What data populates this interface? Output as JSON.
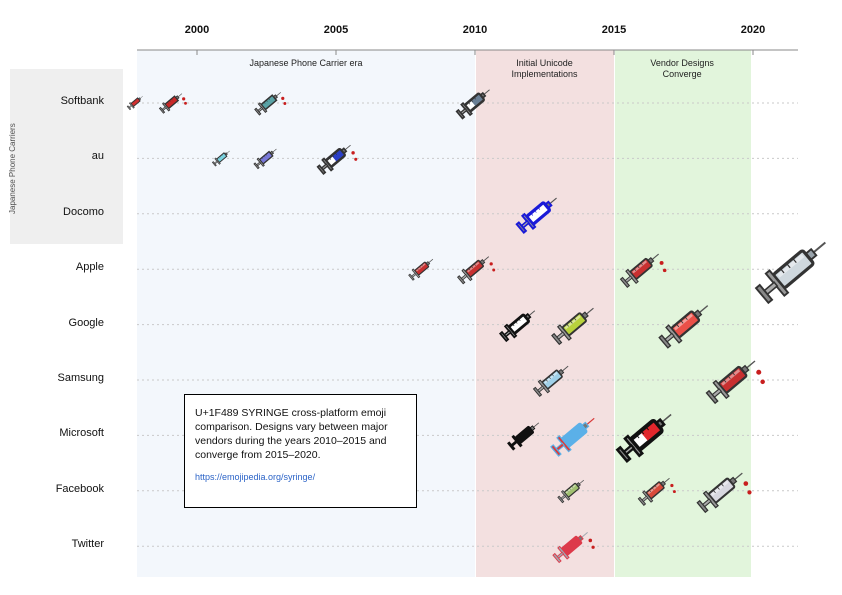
{
  "years": [
    {
      "label": "2000",
      "value": 2000
    },
    {
      "label": "2005",
      "value": 2005
    },
    {
      "label": "2010",
      "value": 2010
    },
    {
      "label": "2015",
      "value": 2015
    },
    {
      "label": "2020",
      "value": 2020
    }
  ],
  "eras": [
    {
      "label": "Japanese Phone Carrier era",
      "start": 1997,
      "end": 2010,
      "color": "#f3f7fc"
    },
    {
      "label": "Initial Unicode Implementations",
      "start": 2010,
      "end": 2015,
      "color": "#f3e0e0"
    },
    {
      "label": "Vendor Designs Converge",
      "start": 2015,
      "end": 2019.9,
      "color": "#e2f5dc"
    }
  ],
  "group_label": "Japanese Phone Carriers",
  "rows": [
    "Softbank",
    "au",
    "Docomo",
    "Apple",
    "Google",
    "Samsung",
    "Microsoft",
    "Facebook",
    "Twitter"
  ],
  "info_box": {
    "text": "U+1F489 SYRINGE cross-platform emoji comparison. Designs vary between major vendors during the years 2010–2015 and converge from 2015–2020.",
    "link": "https://emojipedia.org/syringe/"
  },
  "emojis": [
    {
      "row": "Softbank",
      "year": 1997.8,
      "style": "pixel",
      "barrel": "#d23030",
      "size": 18
    },
    {
      "row": "Softbank",
      "year": 1999.1,
      "style": "pixel",
      "barrel": "#c82828",
      "size": 26,
      "drops": true
    },
    {
      "row": "Softbank",
      "year": 2002.6,
      "style": "pixel",
      "barrel": "#5aa3a6",
      "size": 30,
      "drops": true
    },
    {
      "row": "Softbank",
      "year": 2010,
      "style": "outline",
      "barrel": "#6a7f95",
      "size": 38
    },
    {
      "row": "au",
      "year": 2000.9,
      "style": "pixel",
      "barrel": "#7ad3e0",
      "size": 20
    },
    {
      "row": "au",
      "year": 2002.5,
      "style": "pixel",
      "barrel": "#7878d8",
      "size": 26
    },
    {
      "row": "au",
      "year": 2005,
      "style": "outline",
      "barrel": "#2a3ec8",
      "size": 38,
      "drops": true
    },
    {
      "row": "Docomo",
      "year": 2012.3,
      "style": "outline",
      "barrel": "#ffffff",
      "stroke": "#1a1ad8",
      "size": 46
    },
    {
      "row": "Apple",
      "year": 2008.1,
      "style": "realistic",
      "barrel": "#c83030",
      "size": 28
    },
    {
      "row": "Apple",
      "year": 2010,
      "style": "realistic",
      "barrel": "#c83030",
      "size": 36,
      "drops": true
    },
    {
      "row": "Apple",
      "year": 2016,
      "style": "realistic",
      "barrel": "#c83030",
      "size": 44,
      "drops": true
    },
    {
      "row": "Apple",
      "year": 2021.5,
      "style": "glass",
      "barrel": "#cfd8de",
      "size": 80
    },
    {
      "row": "Google",
      "year": 2011.6,
      "style": "outline",
      "barrel": "#ffffff",
      "stroke": "#111111",
      "size": 40
    },
    {
      "row": "Google",
      "year": 2013.6,
      "style": "realistic",
      "barrel": "#b8d23c",
      "size": 48
    },
    {
      "row": "Google",
      "year": 2017.6,
      "style": "realistic",
      "barrel": "#ea5048",
      "size": 56
    },
    {
      "row": "Samsung",
      "year": 2012.8,
      "style": "realistic",
      "barrel": "#9fd0e8",
      "size": 40
    },
    {
      "row": "Samsung",
      "year": 2019.3,
      "style": "realistic",
      "barrel": "#c83030",
      "size": 56,
      "drops": true
    },
    {
      "row": "Microsoft",
      "year": 2011.8,
      "style": "flat",
      "barrel": "#111111",
      "size": 36
    },
    {
      "row": "Microsoft",
      "year": 2013.6,
      "style": "flat",
      "barrel": "#5bb0e8",
      "accent": "#d83b3b",
      "size": 50
    },
    {
      "row": "Microsoft",
      "year": 2016.2,
      "style": "outline",
      "barrel": "#e2262c",
      "stroke": "#111111",
      "size": 62
    },
    {
      "row": "Facebook",
      "year": 2013.5,
      "style": "realistic",
      "barrel": "#a0c070",
      "size": 30
    },
    {
      "row": "Facebook",
      "year": 2016.5,
      "style": "realistic",
      "barrel": "#d84a3a",
      "size": 36,
      "drops": true
    },
    {
      "row": "Facebook",
      "year": 2018.9,
      "style": "realistic",
      "barrel": "#d8d8e0",
      "size": 52,
      "drops": true
    },
    {
      "row": "Twitter",
      "year": 2013.5,
      "style": "flat",
      "barrel": "#dd3a4a",
      "accent": "#a0a8b0",
      "size": 40,
      "drops": true
    }
  ]
}
